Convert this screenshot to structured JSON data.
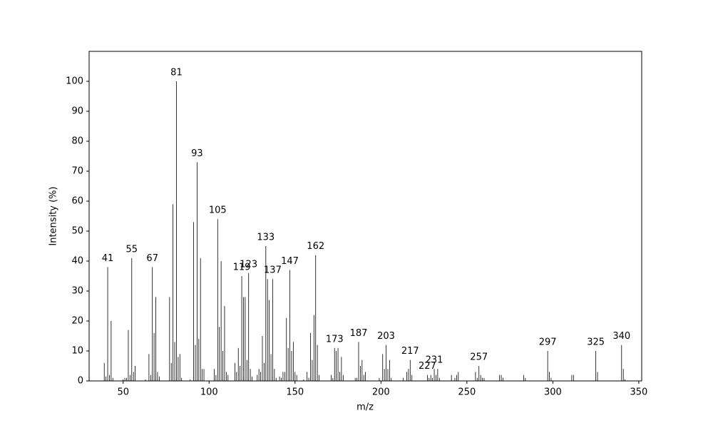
{
  "chart_data": {
    "type": "spectrum",
    "xlabel": "m/z",
    "ylabel": "Intensity (%)",
    "color": "#000000",
    "xlim": [
      30.2,
      351.7
    ],
    "ylim": [
      0,
      110
    ],
    "xticks": [
      50,
      100,
      150,
      200,
      250,
      300,
      350
    ],
    "yticks": [
      0,
      10,
      20,
      30,
      40,
      50,
      60,
      70,
      80,
      90,
      100
    ],
    "x": [
      39,
      40,
      41,
      42,
      43,
      44,
      50,
      51,
      52,
      53,
      54,
      55,
      56,
      57,
      63,
      65,
      66,
      67,
      68,
      69,
      70,
      71,
      77,
      78,
      79,
      80,
      81,
      82,
      83,
      84,
      89,
      91,
      92,
      93,
      94,
      95,
      96,
      97,
      103,
      104,
      105,
      106,
      107,
      108,
      109,
      110,
      111,
      115,
      116,
      117,
      118,
      119,
      120,
      121,
      122,
      123,
      124,
      125,
      128,
      129,
      130,
      131,
      132,
      133,
      134,
      135,
      136,
      137,
      138,
      139,
      141,
      142,
      143,
      144,
      145,
      146,
      147,
      148,
      149,
      150,
      151,
      155,
      157,
      158,
      159,
      160,
      161,
      162,
      163,
      164,
      171,
      172,
      173,
      174,
      175,
      176,
      177,
      178,
      185,
      186,
      187,
      188,
      189,
      190,
      191,
      199,
      201,
      202,
      203,
      204,
      205,
      206,
      213,
      215,
      216,
      217,
      218,
      227,
      228,
      229,
      230,
      231,
      232,
      233,
      234,
      241,
      243,
      244,
      245,
      255,
      256,
      257,
      258,
      259,
      260,
      269,
      270,
      271,
      283,
      284,
      297,
      298,
      299,
      311,
      312,
      325,
      326,
      340,
      341,
      342
    ],
    "values": [
      6,
      1.5,
      38,
      2,
      20,
      1,
      0.5,
      1,
      1,
      17,
      2,
      41,
      3,
      5,
      0.5,
      9,
      2,
      38,
      16,
      28,
      3,
      1.5,
      28,
      6,
      59,
      13,
      100,
      8,
      9,
      1,
      0.5,
      53,
      12,
      73,
      14,
      41,
      4,
      4,
      4,
      2,
      54,
      18,
      40,
      10,
      25,
      3,
      2,
      6,
      3,
      11,
      5,
      35,
      28,
      28,
      7,
      36,
      4,
      1.5,
      2,
      4,
      3,
      15,
      6,
      45,
      34,
      27,
      9,
      34,
      4,
      1,
      1.5,
      1,
      3,
      3,
      21,
      11,
      37,
      10,
      13,
      3,
      2,
      0.5,
      3,
      1,
      16,
      7,
      22,
      42,
      12,
      2,
      2,
      1,
      11,
      10,
      11,
      3,
      8,
      2,
      1,
      1,
      13,
      5,
      7,
      2,
      3,
      1,
      9,
      4,
      12,
      4,
      7,
      1,
      1,
      3,
      4,
      7,
      2,
      2,
      1,
      2,
      1,
      4,
      2,
      4,
      1,
      2,
      1,
      2,
      3,
      3,
      1,
      5,
      2,
      1,
      1,
      2,
      2,
      1,
      2,
      1,
      10,
      3,
      1,
      2,
      2,
      10,
      3,
      12,
      4,
      0.5
    ],
    "labels": [
      41,
      55,
      67,
      81,
      93,
      105,
      119,
      123,
      133,
      137,
      147,
      162,
      173,
      187,
      203,
      217,
      227,
      231,
      257,
      297,
      325,
      340
    ]
  }
}
